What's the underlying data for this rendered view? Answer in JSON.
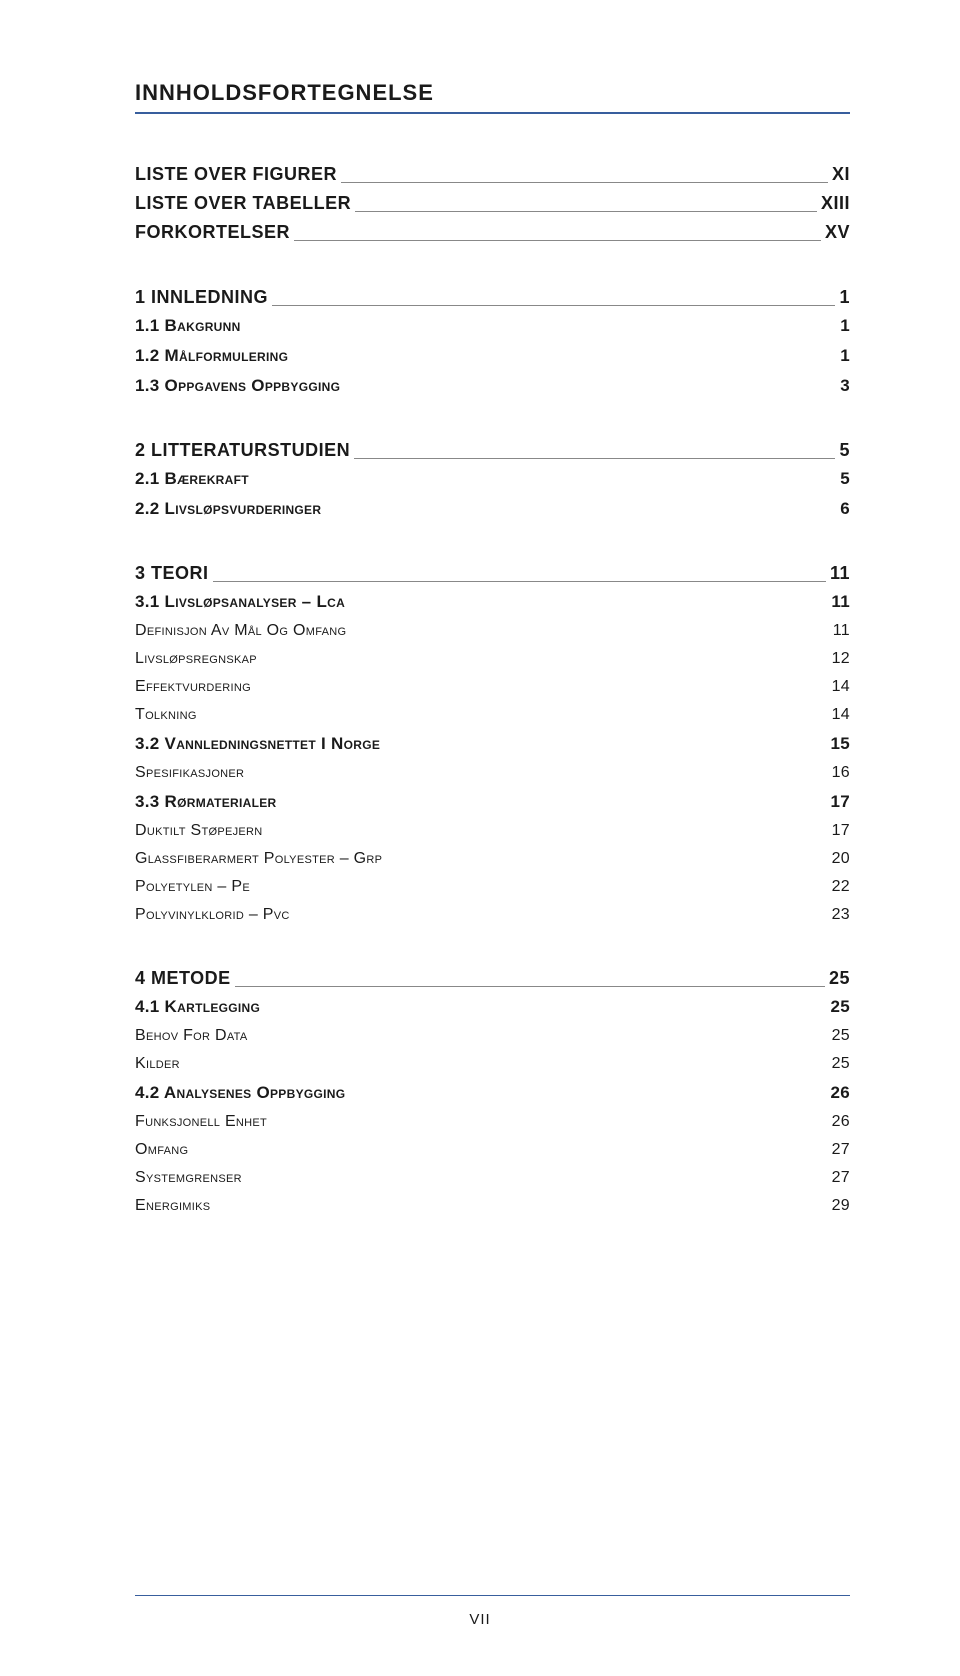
{
  "title": "INNHOLDSFORTEGNELSE",
  "footer_page": "VII",
  "sections": [
    {
      "type": "major-only",
      "items": [
        {
          "level": "major",
          "label": "LISTE OVER FIGURER",
          "page": "XI"
        },
        {
          "level": "major",
          "label": "LISTE OVER TABELLER",
          "page": "XIII"
        },
        {
          "level": "major",
          "label": "FORKORTELSER",
          "page": "XV"
        }
      ]
    },
    {
      "type": "chapter",
      "items": [
        {
          "level": "major",
          "label": "1 INNLEDNING",
          "page": "1"
        },
        {
          "level": "sub",
          "label": "1.1 BAKGRUNN",
          "page": "1"
        },
        {
          "level": "sub",
          "label": "1.2 MÅLFORMULERING",
          "page": "1"
        },
        {
          "level": "sub",
          "label": "1.3 OPPGAVENS OPPBYGGING",
          "page": "3"
        }
      ]
    },
    {
      "type": "chapter",
      "items": [
        {
          "level": "major",
          "label": "2 LITTERATURSTUDIEN",
          "page": "5"
        },
        {
          "level": "sub",
          "label": "2.1 BÆREKRAFT",
          "page": "5"
        },
        {
          "level": "sub",
          "label": "2.2 LIVSLØPSVURDERINGER",
          "page": "6"
        }
      ]
    },
    {
      "type": "chapter",
      "items": [
        {
          "level": "major",
          "label": "3 TEORI",
          "page": "11"
        },
        {
          "level": "sub",
          "label": "3.1 LIVSLØPSANALYSER – LCA",
          "page": "11"
        },
        {
          "level": "subsub",
          "label": "DEFINISJON AV MÅL OG OMFANG",
          "page": "11"
        },
        {
          "level": "subsub",
          "label": "LIVSLØPSREGNSKAP",
          "page": "12"
        },
        {
          "level": "subsub",
          "label": "EFFEKTVURDERING",
          "page": "14"
        },
        {
          "level": "subsub",
          "label": "TOLKNING",
          "page": "14"
        },
        {
          "level": "sub",
          "label": "3.2 VANNLEDNINGSNETTET I NORGE",
          "page": "15"
        },
        {
          "level": "subsub",
          "label": "SPESIFIKASJONER",
          "page": "16"
        },
        {
          "level": "sub",
          "label": "3.3 RØRMATERIALER",
          "page": "17"
        },
        {
          "level": "subsub",
          "label": "DUKTILT STØPEJERN",
          "page": "17"
        },
        {
          "level": "subsub",
          "label": "GLASSFIBERARMERT POLYESTER – GRP",
          "page": "20"
        },
        {
          "level": "subsub",
          "label": "POLYETYLEN – PE",
          "page": "22"
        },
        {
          "level": "subsub",
          "label": "POLYVINYLKLORID – PVC",
          "page": "23"
        }
      ]
    },
    {
      "type": "chapter",
      "items": [
        {
          "level": "major",
          "label": "4 METODE",
          "page": "25"
        },
        {
          "level": "sub",
          "label": "4.1 KARTLEGGING",
          "page": "25"
        },
        {
          "level": "subsub",
          "label": "BEHOV FOR DATA",
          "page": "25"
        },
        {
          "level": "subsub",
          "label": "KILDER",
          "page": "25"
        },
        {
          "level": "sub",
          "label": "4.2 ANALYSENES OPPBYGGING",
          "page": "26"
        },
        {
          "level": "subsub",
          "label": "FUNKSJONELL ENHET",
          "page": "26"
        },
        {
          "level": "subsub",
          "label": "OMFANG",
          "page": "27"
        },
        {
          "level": "subsub",
          "label": "SYSTEMGRENSER",
          "page": "27"
        },
        {
          "level": "subsub",
          "label": "ENERGIMIKS",
          "page": "29"
        }
      ]
    }
  ]
}
